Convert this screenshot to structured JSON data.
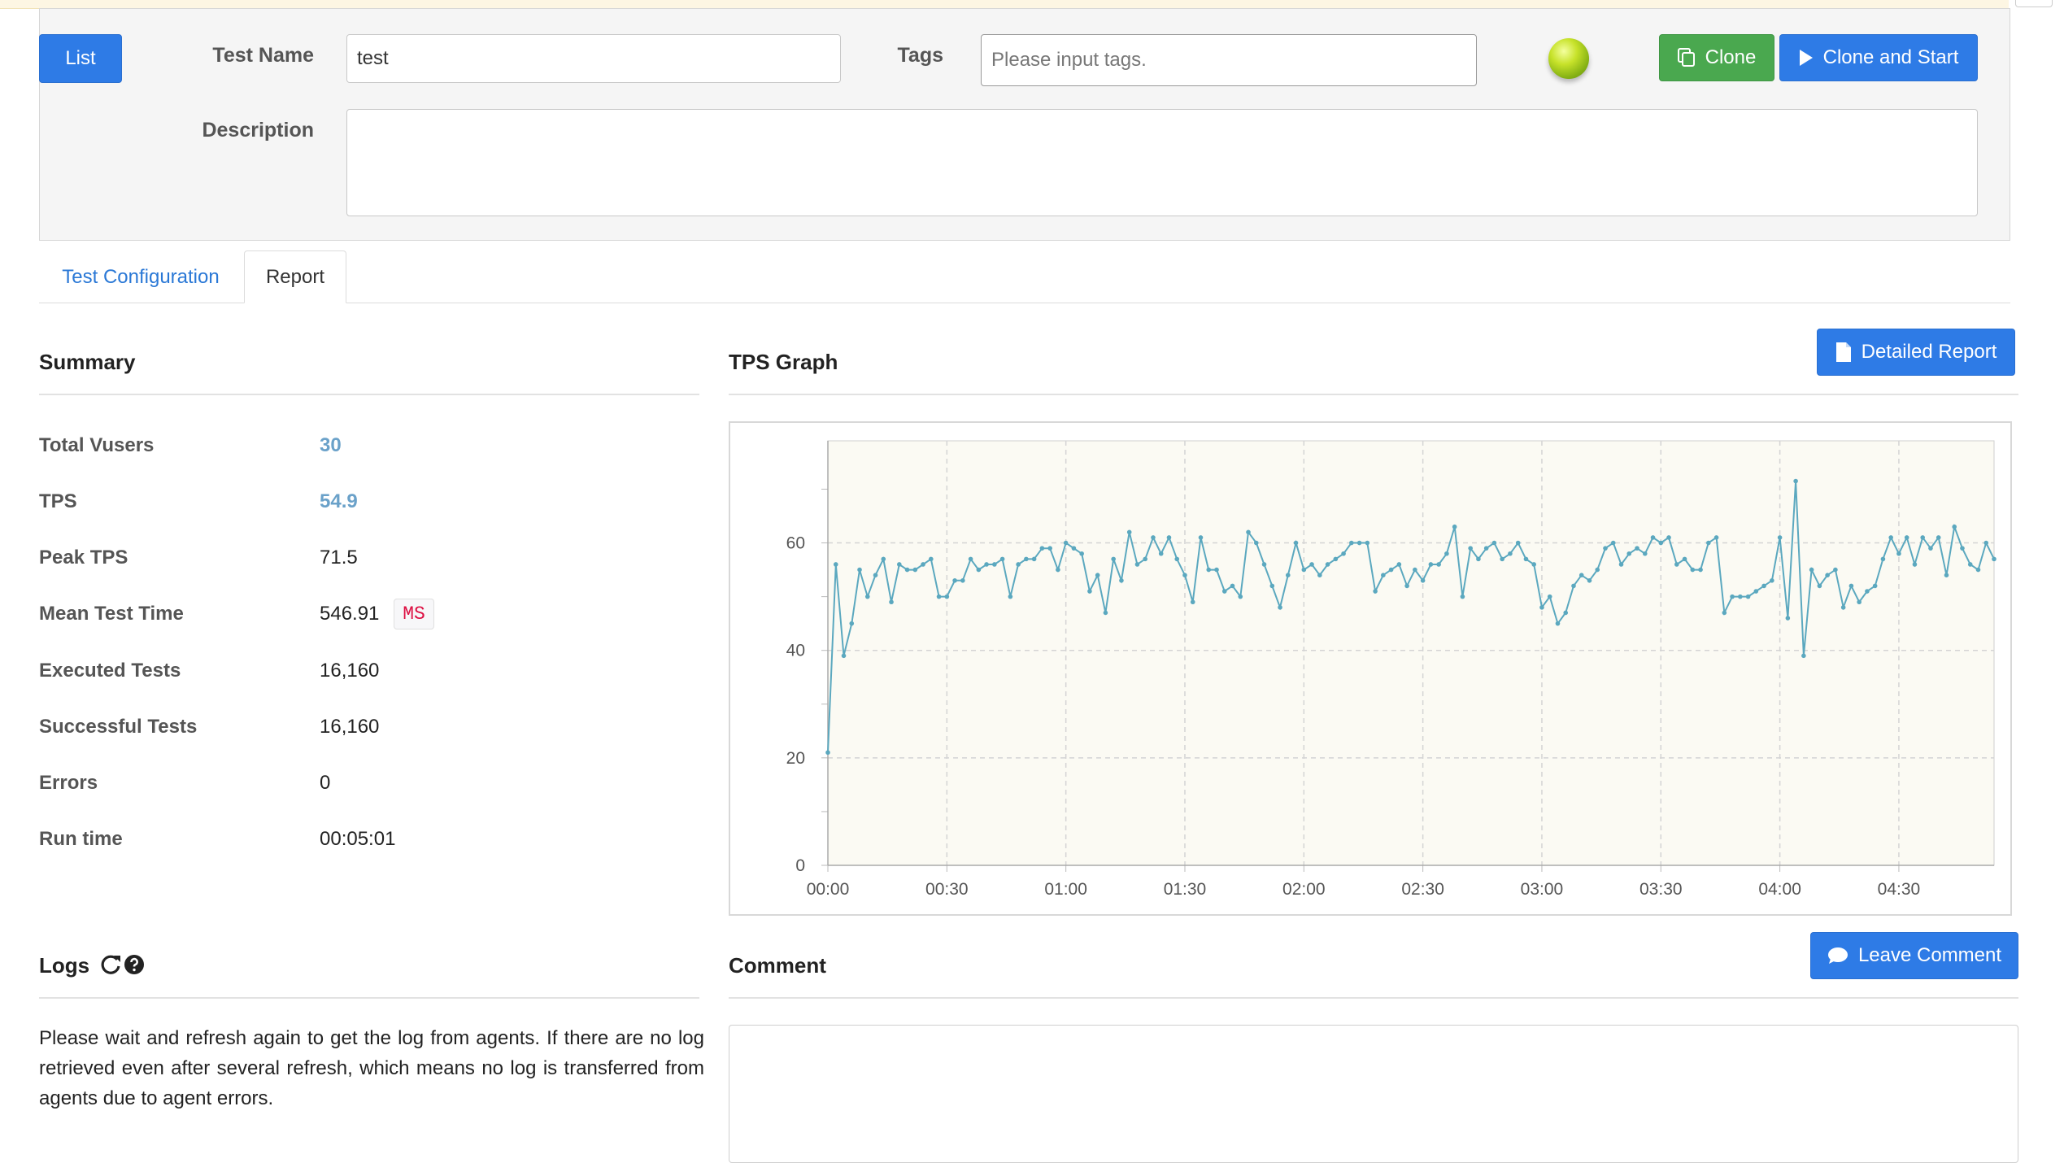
{
  "header": {
    "list_button": "List",
    "test_name_label": "Test Name",
    "test_name_value": "test",
    "tags_label": "Tags",
    "tags_placeholder": "Please input tags.",
    "clone_button": "Clone",
    "clone_start_button": "Clone and Start",
    "description_label": "Description",
    "description_value": "",
    "status_color": "#a6c81e"
  },
  "tabs": [
    {
      "label": "Test Configuration",
      "active": false
    },
    {
      "label": "Report",
      "active": true
    }
  ],
  "summary": {
    "title": "Summary",
    "rows": [
      {
        "label": "Total Vusers",
        "value": "30"
      },
      {
        "label": "TPS",
        "value": "54.9"
      },
      {
        "label": "Peak TPS",
        "value": "71.5"
      },
      {
        "label": "Mean Test Time",
        "value": "546.91",
        "unit": "MS"
      },
      {
        "label": "Executed Tests",
        "value": "16,160"
      },
      {
        "label": "Successful Tests",
        "value": "16,160"
      },
      {
        "label": "Errors",
        "value": "0"
      },
      {
        "label": "Run time",
        "value": "00:05:01"
      }
    ]
  },
  "tps_graph": {
    "title": "TPS Graph",
    "detailed_report_button": "Detailed Report"
  },
  "logs": {
    "title": "Logs",
    "refresh_icon": "refresh-icon",
    "help_icon": "question-circle-icon",
    "message": "Please wait and refresh again to get the log from agents. If there are no log retrieved even after several refresh, which means no log is transferred from agents due to agent errors."
  },
  "comment": {
    "title": "Comment",
    "leave_comment_button": "Leave Comment"
  },
  "colors": {
    "primary": "#2e7be6",
    "success": "#4aa84f",
    "line": "#5ba8bf",
    "plot_bg": "#fbfaf3"
  },
  "chart_data": {
    "type": "line",
    "title": "",
    "xlabel": "",
    "ylabel": "",
    "ylim": [
      0,
      79
    ],
    "yticks": [
      0,
      20,
      40,
      60
    ],
    "xlim_seconds": [
      0,
      294
    ],
    "xticks": [
      "00:00",
      "00:30",
      "01:00",
      "01:30",
      "02:00",
      "02:30",
      "03:00",
      "03:30",
      "04:00",
      "04:30"
    ],
    "grid": true,
    "interval_seconds": 2,
    "series": [
      {
        "values": [
          21,
          56,
          39,
          45,
          55,
          50,
          54,
          57,
          49,
          56,
          55,
          55,
          56,
          57,
          50,
          50,
          53,
          53,
          57,
          55,
          56,
          56,
          57,
          50,
          56,
          57,
          57,
          59,
          59,
          55,
          60,
          59,
          58,
          51,
          54,
          47,
          57,
          53,
          62,
          56,
          57,
          61,
          58,
          61,
          57,
          54,
          49,
          61,
          55,
          55,
          51,
          52,
          50,
          62,
          60,
          56,
          52,
          48,
          54,
          60,
          55,
          56,
          54,
          56,
          57,
          58,
          60,
          60,
          60,
          51,
          54,
          55,
          56,
          52,
          55,
          53,
          56,
          56,
          58,
          63,
          50,
          59,
          57,
          59,
          60,
          57,
          58,
          60,
          57,
          56,
          48,
          50,
          45,
          47,
          52,
          54,
          53,
          55,
          59,
          60,
          56,
          58,
          59,
          58,
          61,
          60,
          61,
          56,
          57,
          55,
          55,
          60,
          61,
          47,
          50,
          50,
          50,
          51,
          52,
          53,
          61,
          46,
          71.5,
          39,
          55,
          52,
          54,
          55,
          48,
          52,
          49,
          51,
          52,
          57,
          61,
          58,
          61,
          56,
          61,
          59,
          61,
          54,
          63,
          59,
          56,
          55,
          60,
          57
        ]
      }
    ]
  }
}
